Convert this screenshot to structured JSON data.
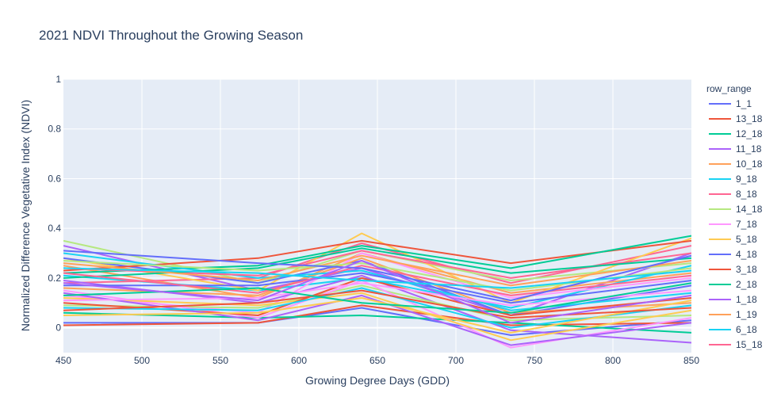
{
  "chart_data": {
    "type": "line",
    "title": "2021 NDVI Throughout the Growing Season",
    "xlabel": "Growing Degree Days (GDD)",
    "ylabel": "Normalized Difference Vegetative Index (NDVI)",
    "xlim": [
      450,
      850
    ],
    "ylim": [
      -0.1,
      1.0
    ],
    "x_ticks": [
      "450",
      "500",
      "550",
      "600",
      "650",
      "700",
      "750",
      "800",
      "850"
    ],
    "y_ticks": [
      "0",
      "0.2",
      "0.4",
      "0.6",
      "0.8",
      "1"
    ],
    "grid": true,
    "legend_title": "row_range",
    "legend_position": "right",
    "x": [
      450,
      574,
      640,
      735,
      850
    ],
    "series": [
      {
        "name": "1_1",
        "color": "#636efa",
        "values": [
          0.02,
          0.02,
          0.08,
          -0.03,
          0.03
        ]
      },
      {
        "name": "13_18",
        "color": "#EF553B",
        "values": [
          0.01,
          0.02,
          0.09,
          0.01,
          0.02
        ]
      },
      {
        "name": "12_18",
        "color": "#00cc96",
        "values": [
          0.06,
          0.04,
          0.05,
          0.02,
          -0.02
        ]
      },
      {
        "name": "11_18",
        "color": "#ab63fa",
        "values": [
          0.33,
          0.15,
          0.24,
          0.05,
          0.3
        ]
      },
      {
        "name": "10_18",
        "color": "#FFA15A",
        "values": [
          0.25,
          0.12,
          0.3,
          0.14,
          0.22
        ]
      },
      {
        "name": "9_18",
        "color": "#19d3f3",
        "values": [
          0.21,
          0.15,
          0.2,
          0.08,
          0.25
        ]
      },
      {
        "name": "8_18",
        "color": "#FF6692",
        "values": [
          0.18,
          0.2,
          0.34,
          0.18,
          0.33
        ]
      },
      {
        "name": "14_18",
        "color": "#B6E880",
        "values": [
          0.35,
          0.18,
          0.31,
          0.19,
          0.26
        ]
      },
      {
        "name": "7_18",
        "color": "#FF97FF",
        "values": [
          0.13,
          0.06,
          0.3,
          0.12,
          0.2
        ]
      },
      {
        "name": "5_18",
        "color": "#FECB52",
        "values": [
          0.28,
          0.15,
          0.38,
          0.1,
          0.36
        ]
      },
      {
        "name": "4_18",
        "color": "#636efa",
        "values": [
          0.28,
          0.18,
          0.27,
          0.05,
          0.17
        ]
      },
      {
        "name": "3_18",
        "color": "#EF553B",
        "values": [
          0.23,
          0.28,
          0.35,
          0.26,
          0.35
        ]
      },
      {
        "name": "2_18",
        "color": "#00cc96",
        "values": [
          0.22,
          0.25,
          0.33,
          0.24,
          0.37
        ]
      },
      {
        "name": "1_18",
        "color": "#ab63fa",
        "values": [
          0.19,
          0.1,
          0.21,
          -0.01,
          -0.06
        ]
      },
      {
        "name": "1_19",
        "color": "#FFA15A",
        "values": [
          0.16,
          0.13,
          0.28,
          0.06,
          0.1
        ]
      },
      {
        "name": "6_18",
        "color": "#19d3f3",
        "values": [
          0.3,
          0.2,
          0.23,
          0.07,
          0.14
        ]
      },
      {
        "name": "15_18",
        "color": "#FF6692",
        "values": [
          0.24,
          0.21,
          0.31,
          0.2,
          0.3
        ]
      },
      {
        "color": "#B6E880",
        "values": [
          0.09,
          0.08,
          0.17,
          0.03,
          0.05
        ]
      },
      {
        "color": "#FF97FF",
        "values": [
          0.15,
          0.04,
          0.19,
          -0.08,
          0.04
        ]
      },
      {
        "color": "#FECB52",
        "values": [
          0.12,
          0.09,
          0.14,
          -0.05,
          0.07
        ]
      },
      {
        "color": "#636efa",
        "values": [
          0.17,
          0.17,
          0.22,
          0.1,
          0.19
        ]
      },
      {
        "color": "#EF553B",
        "values": [
          0.1,
          0.05,
          0.2,
          0.05,
          0.12
        ]
      },
      {
        "color": "#00cc96",
        "values": [
          0.2,
          0.24,
          0.32,
          0.22,
          0.28
        ]
      },
      {
        "color": "#ab63fa",
        "values": [
          0.14,
          0.03,
          0.13,
          -0.07,
          0.02
        ]
      },
      {
        "color": "#FFA15A",
        "values": [
          0.26,
          0.19,
          0.29,
          0.17,
          0.27
        ]
      },
      {
        "color": "#19d3f3",
        "values": [
          0.08,
          0.07,
          0.16,
          0.0,
          0.09
        ]
      },
      {
        "color": "#FF6692",
        "values": [
          0.22,
          0.14,
          0.25,
          0.13,
          0.21
        ]
      },
      {
        "color": "#B6E880",
        "values": [
          0.27,
          0.23,
          0.26,
          0.15,
          0.24
        ]
      },
      {
        "color": "#FF97FF",
        "values": [
          0.11,
          0.12,
          0.18,
          0.09,
          0.15
        ]
      },
      {
        "color": "#FECB52",
        "values": [
          0.05,
          0.06,
          0.12,
          -0.02,
          0.11
        ]
      },
      {
        "color": "#636efa",
        "values": [
          0.31,
          0.26,
          0.24,
          0.11,
          0.29
        ]
      },
      {
        "color": "#EF553B",
        "values": [
          0.07,
          0.1,
          0.15,
          0.04,
          0.08
        ]
      },
      {
        "color": "#00cc96",
        "values": [
          0.13,
          0.16,
          0.1,
          0.06,
          0.18
        ]
      },
      {
        "color": "#ab63fa",
        "values": [
          0.18,
          0.11,
          0.27,
          0.02,
          0.13
        ]
      },
      {
        "color": "#19d3f3",
        "values": [
          0.24,
          0.22,
          0.19,
          0.16,
          0.23
        ]
      }
    ]
  }
}
